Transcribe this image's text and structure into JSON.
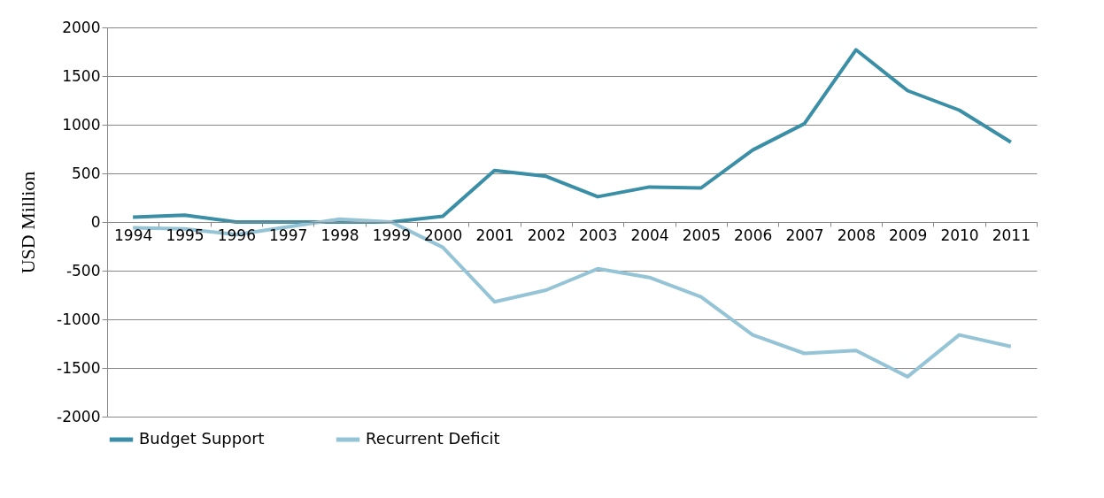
{
  "chart_data": {
    "type": "line",
    "ylabel": "USD Million",
    "categories": [
      "1994",
      "1995",
      "1996",
      "1997",
      "1998",
      "1999",
      "2000",
      "2001",
      "2002",
      "2003",
      "2004",
      "2005",
      "2006",
      "2007",
      "2008",
      "2009",
      "2010",
      "2011"
    ],
    "series": [
      {
        "name": "Budget Support",
        "color": "#3a8fa6",
        "values": [
          50,
          70,
          0,
          0,
          0,
          0,
          60,
          530,
          470,
          260,
          360,
          350,
          740,
          1010,
          1770,
          1350,
          1150,
          820
        ]
      },
      {
        "name": "Recurrent Deficit",
        "color": "#94c4d6",
        "values": [
          -60,
          -70,
          -130,
          -50,
          30,
          0,
          -260,
          -820,
          -700,
          -480,
          -570,
          -770,
          -1160,
          -1350,
          -1320,
          -1590,
          -1160,
          -1280
        ]
      }
    ],
    "ylim": [
      -2000,
      2000
    ],
    "yticks": [
      -2000,
      -1500,
      -1000,
      -500,
      0,
      500,
      1000,
      1500,
      2000
    ],
    "grid": "y",
    "legend": "bottom",
    "marker": "none",
    "line_style": "solid"
  }
}
